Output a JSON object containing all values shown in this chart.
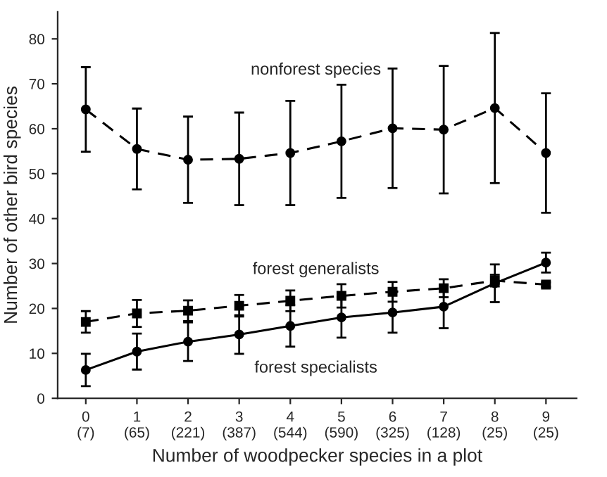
{
  "chart_data": {
    "type": "line",
    "xlabel": "Number of woodpecker species in a plot",
    "ylabel": "Number of other bird species",
    "categories": [
      "0\n(7)",
      "1\n(65)",
      "2\n(221)",
      "3\n(387)",
      "4\n(544)",
      "5\n(590)",
      "6\n(325)",
      "7\n(128)",
      "8\n(25)",
      "9\n(25)"
    ],
    "ylim": [
      0,
      86
    ],
    "yticks": [
      0,
      10,
      20,
      30,
      40,
      50,
      60,
      70,
      80
    ],
    "grid": false,
    "legend": false,
    "series": [
      {
        "name": "nonforest species",
        "color": "#000000",
        "marker": "circle",
        "line_style": "dashed",
        "values": [
          64.3,
          55.5,
          53.1,
          53.3,
          54.6,
          57.2,
          60.1,
          59.8,
          64.6,
          54.6
        ],
        "errors": [
          9.4,
          9,
          9.6,
          10.3,
          11.6,
          12.6,
          13.3,
          14.2,
          16.7,
          13.3
        ]
      },
      {
        "name": "forest generalists",
        "color": "#000000",
        "marker": "square",
        "line_style": "dashed",
        "values": [
          17.0,
          18.9,
          19.5,
          20.6,
          21.7,
          22.8,
          23.7,
          24.5,
          26.2,
          25.3
        ],
        "errors": [
          2.4,
          3,
          2.3,
          2.4,
          2.3,
          2.6,
          2.2,
          2.0,
          1.3,
          0.5
        ]
      },
      {
        "name": "forest specialists",
        "color": "#000000",
        "marker": "circle",
        "line_style": "solid",
        "values": [
          6.3,
          10.4,
          12.6,
          14.2,
          16.1,
          18.0,
          19.1,
          20.4,
          25.6,
          30.2
        ],
        "errors": [
          3.6,
          4,
          4.3,
          4.3,
          4.6,
          4.5,
          4.5,
          4.8,
          4.2,
          2.2
        ]
      }
    ]
  }
}
